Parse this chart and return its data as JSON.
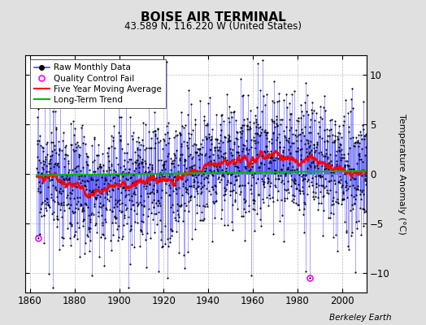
{
  "title": "BOISE AIR TERMINAL",
  "subtitle": "43.589 N, 116.220 W (United States)",
  "ylabel": "Temperature Anomaly (°C)",
  "xlabel_credit": "Berkeley Earth",
  "year_start": 1863,
  "year_end": 2011,
  "ylim": [
    -12,
    12
  ],
  "yticks": [
    -10,
    -5,
    0,
    5,
    10
  ],
  "xticks": [
    1860,
    1880,
    1900,
    1920,
    1940,
    1960,
    1980,
    2000
  ],
  "fig_bg_color": "#e0e0e0",
  "plot_bg_color": "#ffffff",
  "line_color": "#4444ff",
  "marker_color": "#000000",
  "moving_avg_color": "#ff0000",
  "trend_color": "#00bb00",
  "qc_fail_color": "#ff00ff",
  "legend_fontsize": 7.5,
  "title_fontsize": 11,
  "subtitle_fontsize": 8.5,
  "qc_year1": 1863.5,
  "qc_val1": -6.5,
  "qc_year2": 1985.5,
  "qc_val2": -10.5
}
